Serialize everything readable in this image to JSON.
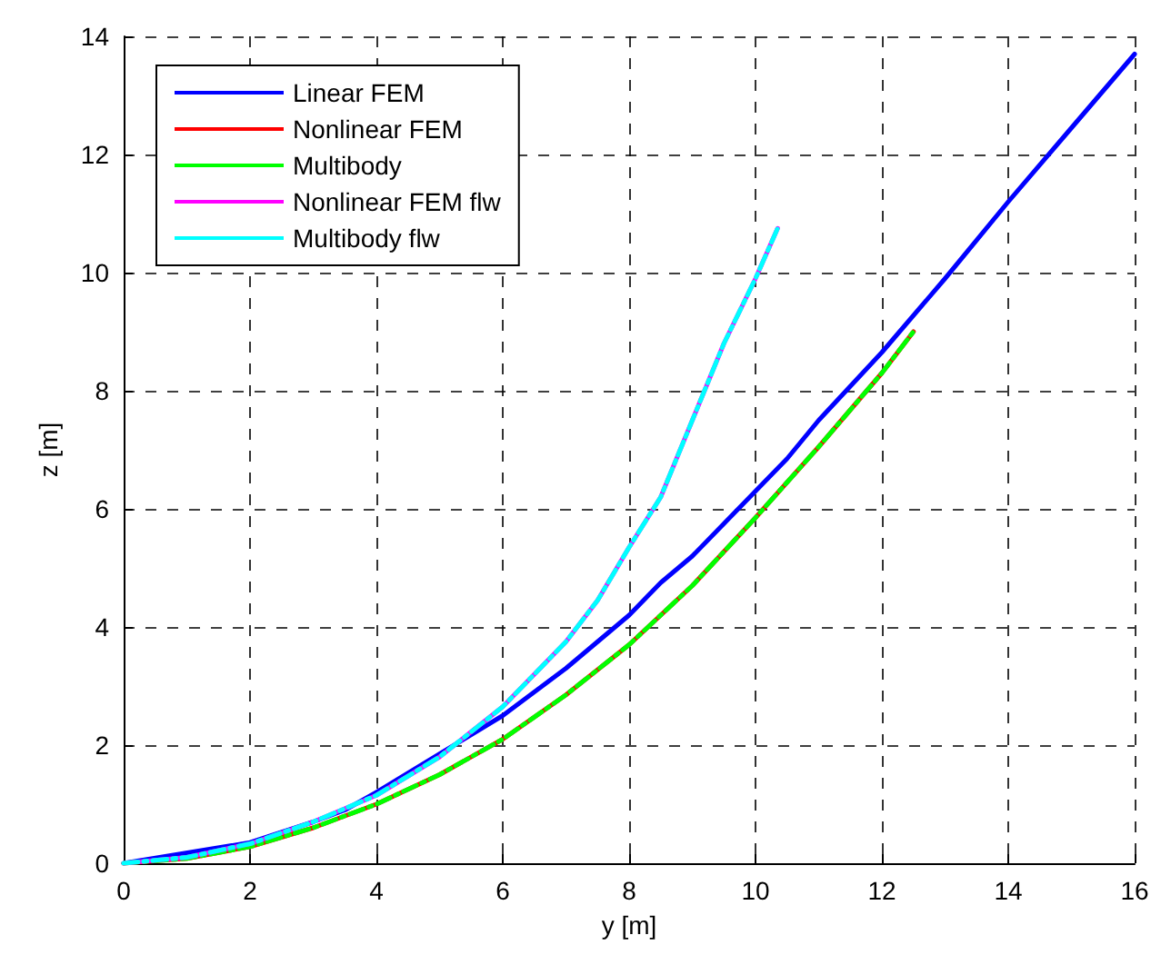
{
  "chart_data": {
    "type": "line",
    "xlabel": "y [m]",
    "ylabel": "z [m]",
    "xlim": [
      0,
      16
    ],
    "xticks": [
      0,
      2,
      4,
      6,
      8,
      10,
      12,
      14,
      16
    ],
    "ylim": [
      0,
      14
    ],
    "yticks": [
      0,
      2,
      4,
      6,
      8,
      10,
      12,
      14
    ],
    "grid": true,
    "legend": "top left",
    "marker": "none",
    "series": [
      {
        "name": "Linear FEM",
        "color": "#0000ff",
        "line_style": "solid",
        "x": [
          0,
          2,
          3,
          3.5,
          4,
          5,
          6,
          7,
          8,
          8.5,
          9,
          10,
          10.5,
          11,
          12,
          13,
          14,
          15,
          16
        ],
        "values": [
          0,
          0.35,
          0.7,
          0.9,
          1.2,
          1.85,
          2.5,
          3.3,
          4.2,
          4.75,
          5.2,
          6.3,
          6.85,
          7.5,
          8.65,
          9.9,
          11.2,
          12.45,
          13.7
        ]
      },
      {
        "name": "Nonlinear FEM",
        "color": "#ff0000",
        "line_style": "solid",
        "x": [
          0,
          1,
          2,
          3,
          4,
          5,
          6,
          7,
          8,
          8.5,
          9,
          10,
          11,
          12,
          12.5
        ],
        "values": [
          0,
          0.08,
          0.28,
          0.6,
          1.0,
          1.5,
          2.1,
          2.85,
          3.7,
          4.2,
          4.7,
          5.85,
          7.05,
          8.3,
          9.0
        ]
      },
      {
        "name": "Multibody",
        "color": "#00ff00",
        "line_style": "dashed",
        "x": [
          0,
          1,
          2,
          3,
          4,
          5,
          6,
          7,
          8,
          8.5,
          9,
          10,
          11,
          12,
          12.5
        ],
        "values": [
          0,
          0.08,
          0.28,
          0.6,
          1.0,
          1.5,
          2.1,
          2.85,
          3.7,
          4.2,
          4.7,
          5.85,
          7.05,
          8.3,
          9.0
        ]
      },
      {
        "name": "Nonlinear FEM flw",
        "color": "#ff00ff",
        "line_style": "solid",
        "x": [
          0,
          1,
          2,
          3,
          4,
          5,
          6,
          7,
          7.5,
          8,
          8.5,
          9,
          9.5,
          10,
          10.35
        ],
        "values": [
          0,
          0.1,
          0.33,
          0.7,
          1.15,
          1.8,
          2.65,
          3.75,
          4.45,
          5.35,
          6.2,
          7.5,
          8.8,
          9.9,
          10.75
        ]
      },
      {
        "name": "Multibody flw",
        "color": "#00ffff",
        "line_style": "dashed",
        "x": [
          0,
          1,
          2,
          3,
          4,
          5,
          6,
          7,
          7.5,
          8,
          8.5,
          9,
          9.5,
          10,
          10.35
        ],
        "values": [
          0,
          0.1,
          0.33,
          0.7,
          1.15,
          1.8,
          2.65,
          3.75,
          4.45,
          5.35,
          6.2,
          7.5,
          8.8,
          9.9,
          10.75
        ]
      }
    ]
  }
}
